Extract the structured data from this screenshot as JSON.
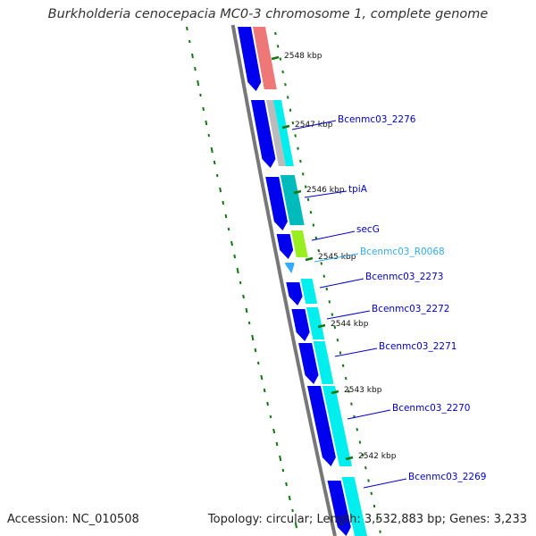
{
  "title": "Burkholderia cenocepacia MC0-3 chromosome 1, complete genome",
  "accession_label": "Accession: NC_010508",
  "topology_label": "Topology: circular; Length: 3,532,883 bp; Genes: 3,233",
  "kbp_labels": [
    "2548 kbp",
    "2547 kbp",
    "2546 kbp",
    "2545 kbp",
    "2544 kbp",
    "2543 kbp",
    "2542 kbp"
  ],
  "gene_labels": [
    {
      "text": "Bcenmc03_2276",
      "color": "#0000cc"
    },
    {
      "text": "tpiA",
      "color": "#0000cc"
    },
    {
      "text": "secG",
      "color": "#0000cc"
    },
    {
      "text": "Bcenmc03_R0068",
      "color": "#33aaee"
    },
    {
      "text": "Bcenmc03_2273",
      "color": "#0000cc"
    },
    {
      "text": "Bcenmc03_2272",
      "color": "#0000cc"
    },
    {
      "text": "Bcenmc03_2271",
      "color": "#0000cc"
    },
    {
      "text": "Bcenmc03_2270",
      "color": "#0000cc"
    },
    {
      "text": "Bcenmc03_2269",
      "color": "#0000cc"
    }
  ],
  "colors": {
    "backbone": "#777777",
    "cds": "#0000ee",
    "cds_light": "#00eeee",
    "cds_teal": "#00bbbb",
    "rrna": "#ee7777",
    "secg": "#99ee22",
    "trna": "#33aaff",
    "gc_dots": "#117711",
    "ticks": "#117711"
  }
}
